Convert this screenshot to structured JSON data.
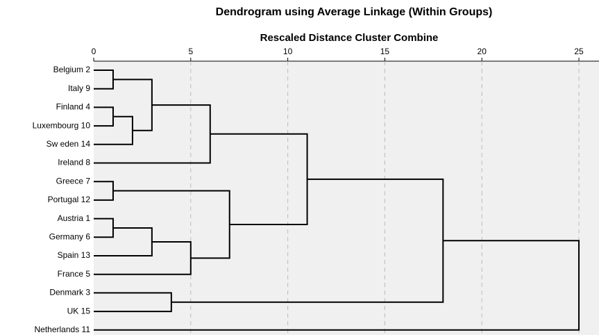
{
  "chart_data": {
    "type": "dendrogram",
    "title": "Dendrogram using Average Linkage (Within Groups)",
    "x_label": "Rescaled Distance Cluster Combine",
    "leaves": [
      "Belgium 2",
      "Italy 9",
      "Finland 4",
      "Luxembourg 10",
      "Sw eden 14",
      "Ireland 8",
      "Greece 7",
      "Portugal 12",
      "Austria 1",
      "Germany 6",
      "Spain 13",
      "France 5",
      "Denmark 3",
      "UK 15",
      "Netherlands 11"
    ],
    "merges": [
      {
        "a": 0,
        "b": 1,
        "height": 1
      },
      {
        "a": 2,
        "b": 3,
        "height": 1
      },
      {
        "a": 6,
        "b": 7,
        "height": 1
      },
      {
        "a": 8,
        "b": 9,
        "height": 1
      },
      {
        "a": 16,
        "b": 4,
        "height": 2
      },
      {
        "a": 15,
        "b": 19,
        "height": 3
      },
      {
        "a": 18,
        "b": 10,
        "height": 3
      },
      {
        "a": 12,
        "b": 13,
        "height": 4
      },
      {
        "a": 21,
        "b": 11,
        "height": 5
      },
      {
        "a": 20,
        "b": 5,
        "height": 6
      },
      {
        "a": 17,
        "b": 23,
        "height": 7
      },
      {
        "a": 24,
        "b": 25,
        "height": 11
      },
      {
        "a": 26,
        "b": 22,
        "height": 18
      },
      {
        "a": 27,
        "b": 14,
        "height": 25
      }
    ],
    "xlim": [
      0,
      26
    ],
    "xticks": [
      0,
      5,
      10,
      15,
      20,
      25
    ],
    "grid": true,
    "color": "#000000"
  }
}
